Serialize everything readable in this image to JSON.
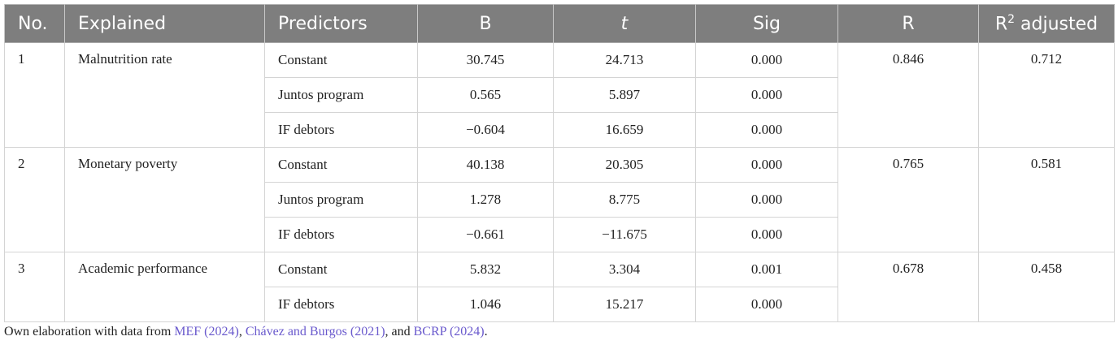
{
  "table": {
    "headers": [
      "No.",
      "Explained",
      "Predictors",
      "B",
      "t",
      "Sig",
      "R",
      {
        "base": "R",
        "sup": "2",
        "rest": " adjusted"
      }
    ],
    "groups": [
      {
        "no": "1",
        "explained": "Malnutrition rate",
        "r": "0.846",
        "r2": "0.712",
        "rows": [
          [
            "Constant",
            "30.745",
            "24.713",
            "0.000"
          ],
          [
            "Juntos program",
            "0.565",
            "5.897",
            "0.000"
          ],
          [
            "IF debtors",
            "−0.604",
            "16.659",
            "0.000"
          ]
        ]
      },
      {
        "no": "2",
        "explained": "Monetary poverty",
        "r": "0.765",
        "r2": "0.581",
        "rows": [
          [
            "Constant",
            "40.138",
            "20.305",
            "0.000"
          ],
          [
            "Juntos program",
            "1.278",
            "8.775",
            "0.000"
          ],
          [
            "IF debtors",
            "−0.661",
            "−11.675",
            "0.000"
          ]
        ]
      },
      {
        "no": "3",
        "explained": "Academic performance",
        "r": "0.678",
        "r2": "0.458",
        "rows": [
          [
            "Constant",
            "5.832",
            "3.304",
            "0.001"
          ],
          [
            "IF debtors",
            "1.046",
            "15.217",
            "0.000"
          ]
        ]
      }
    ]
  },
  "footnote": [
    {
      "text": "Own elaboration with data from "
    },
    {
      "text": "MEF (2024)",
      "link": true
    },
    {
      "text": ", "
    },
    {
      "text": "Chávez and Burgos (2021)",
      "link": true
    },
    {
      "text": ", and "
    },
    {
      "text": "BCRP (2024)",
      "link": true
    },
    {
      "text": "."
    }
  ]
}
